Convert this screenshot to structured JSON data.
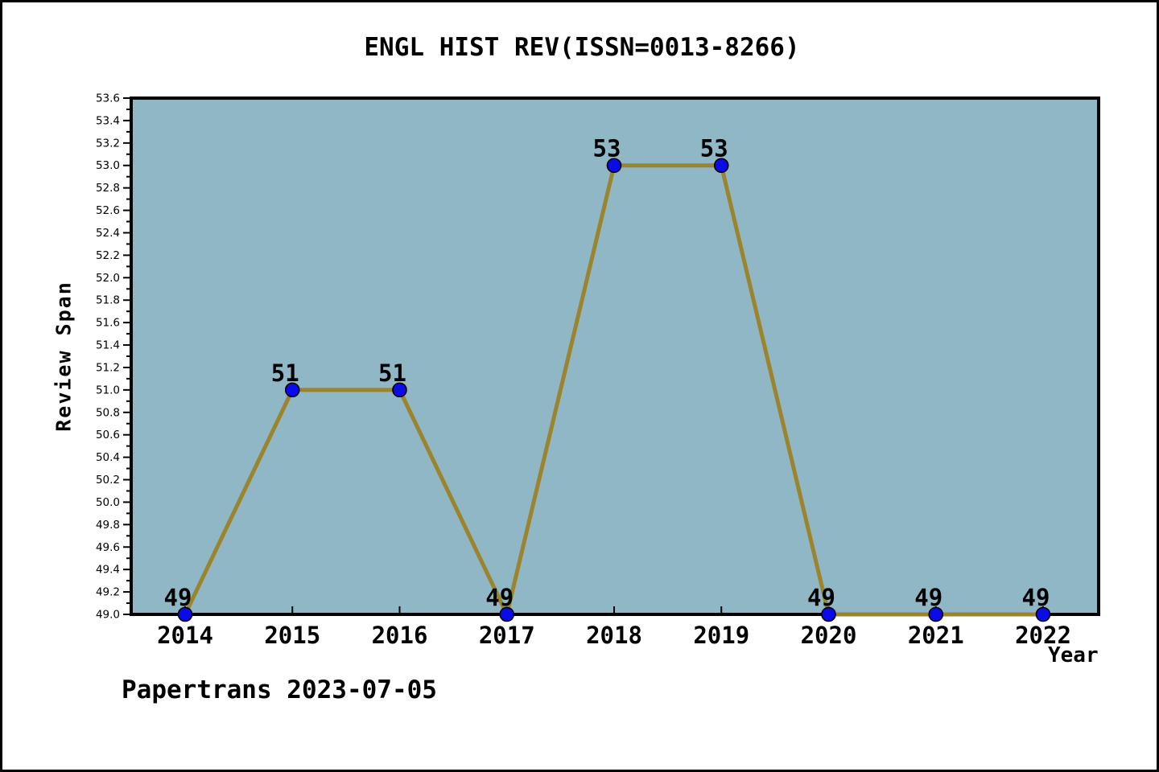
{
  "window": {
    "background_color": "#ffffff",
    "frame_border_color": "#000000"
  },
  "chart_data": {
    "type": "line",
    "title": "ENGL HIST REV(ISSN=0013-8266)",
    "xlabel": "Year",
    "ylabel": "Review Span",
    "categories": [
      2014,
      2015,
      2016,
      2017,
      2018,
      2019,
      2020,
      2021,
      2022
    ],
    "values": [
      49,
      51,
      51,
      49,
      53,
      53,
      49,
      49,
      49
    ],
    "point_labels": [
      "49",
      "51",
      "51",
      "49",
      "53",
      "53",
      "49",
      "49",
      "49"
    ],
    "ylim": [
      49.0,
      53.6
    ],
    "ytick_major_step": 0.2,
    "ytick_minor_step": 0.1,
    "grid": false,
    "legend_position": "none",
    "plot_bg_color": "#8fb7c6",
    "plot_border_color": "#000000",
    "line_color": "#9b842c",
    "marker_color": "#0b0bea",
    "marker_edge_color": "#000000",
    "tick_color": "#000000",
    "text_color": "#000000"
  },
  "footer": {
    "label": "Papertrans 2023-07-05"
  }
}
